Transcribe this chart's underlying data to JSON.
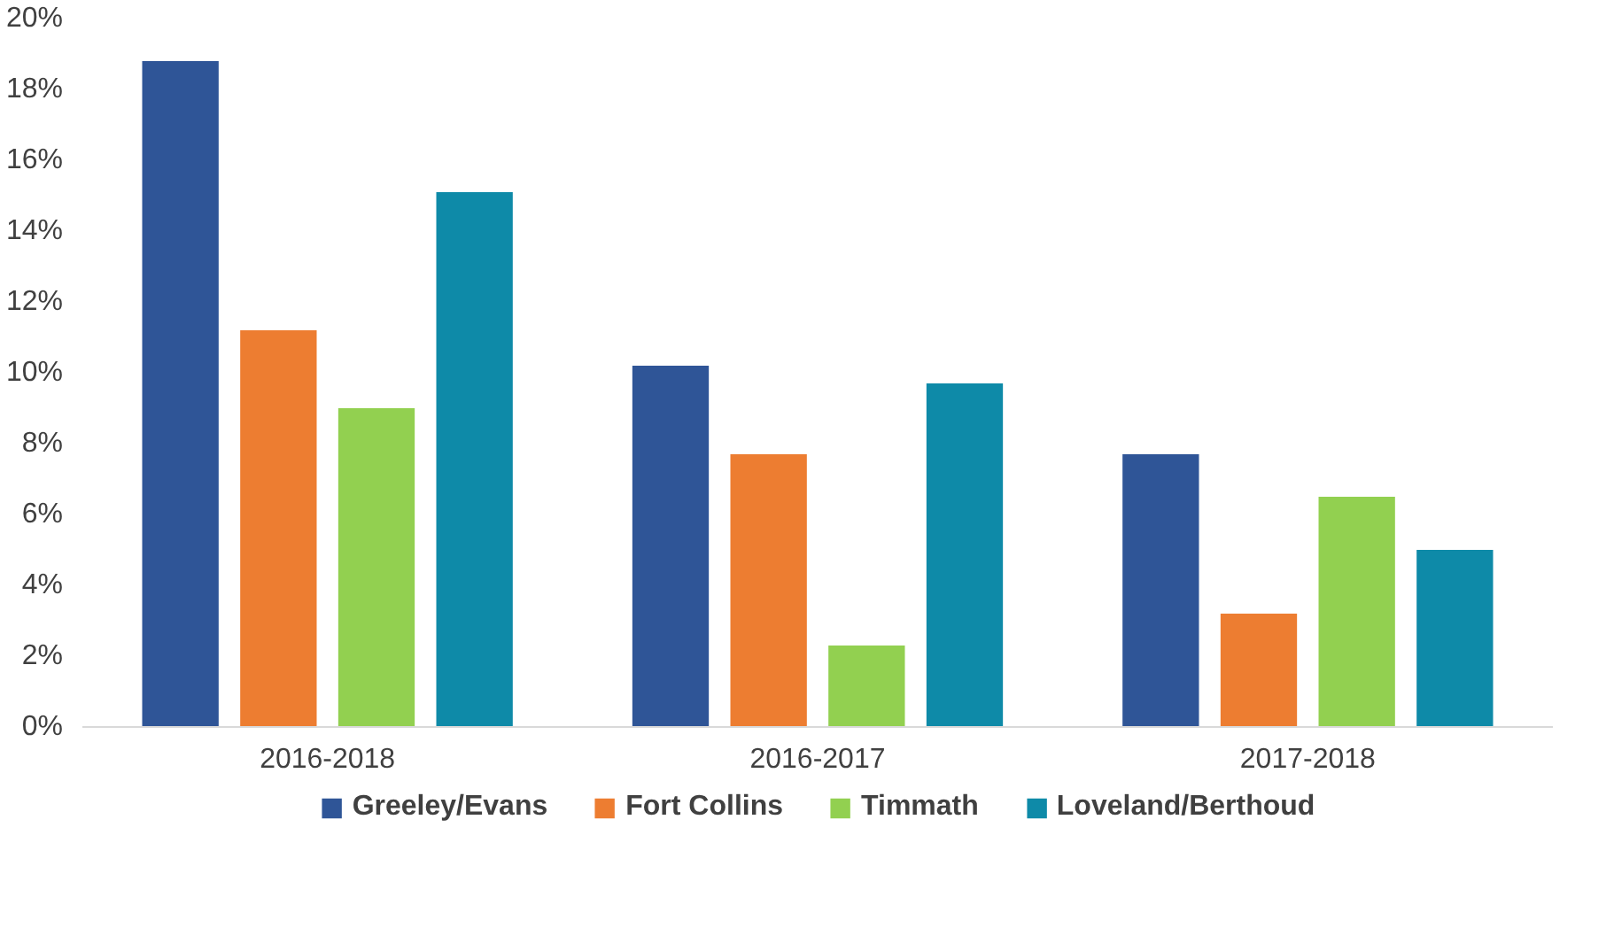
{
  "chart_data": {
    "type": "bar",
    "categories": [
      "2016-2018",
      "2016-2017",
      "2017-2018"
    ],
    "series": [
      {
        "name": "Greeley/Evans",
        "color": "#2f5597",
        "values": [
          18.8,
          10.2,
          7.7
        ]
      },
      {
        "name": "Fort Collins",
        "color": "#ed7d31",
        "values": [
          11.2,
          7.7,
          3.2
        ]
      },
      {
        "name": "Timmath",
        "color": "#92d050",
        "values": [
          9.0,
          2.3,
          6.5
        ]
      },
      {
        "name": "Loveland/Berthoud",
        "color": "#0e8aa8",
        "values": [
          15.1,
          9.7,
          5.0
        ]
      }
    ],
    "ylim": [
      0,
      20
    ],
    "yticks": [
      {
        "value": 0,
        "label": "0%"
      },
      {
        "value": 2,
        "label": "2%"
      },
      {
        "value": 4,
        "label": "4%"
      },
      {
        "value": 6,
        "label": "6%"
      },
      {
        "value": 8,
        "label": "8%"
      },
      {
        "value": 10,
        "label": "10%"
      },
      {
        "value": 12,
        "label": "12%"
      },
      {
        "value": 14,
        "label": "14%"
      },
      {
        "value": 16,
        "label": "16%"
      },
      {
        "value": 18,
        "label": "18%"
      },
      {
        "value": 20,
        "label": "20%"
      }
    ],
    "grid": false,
    "legend": "bottom"
  }
}
